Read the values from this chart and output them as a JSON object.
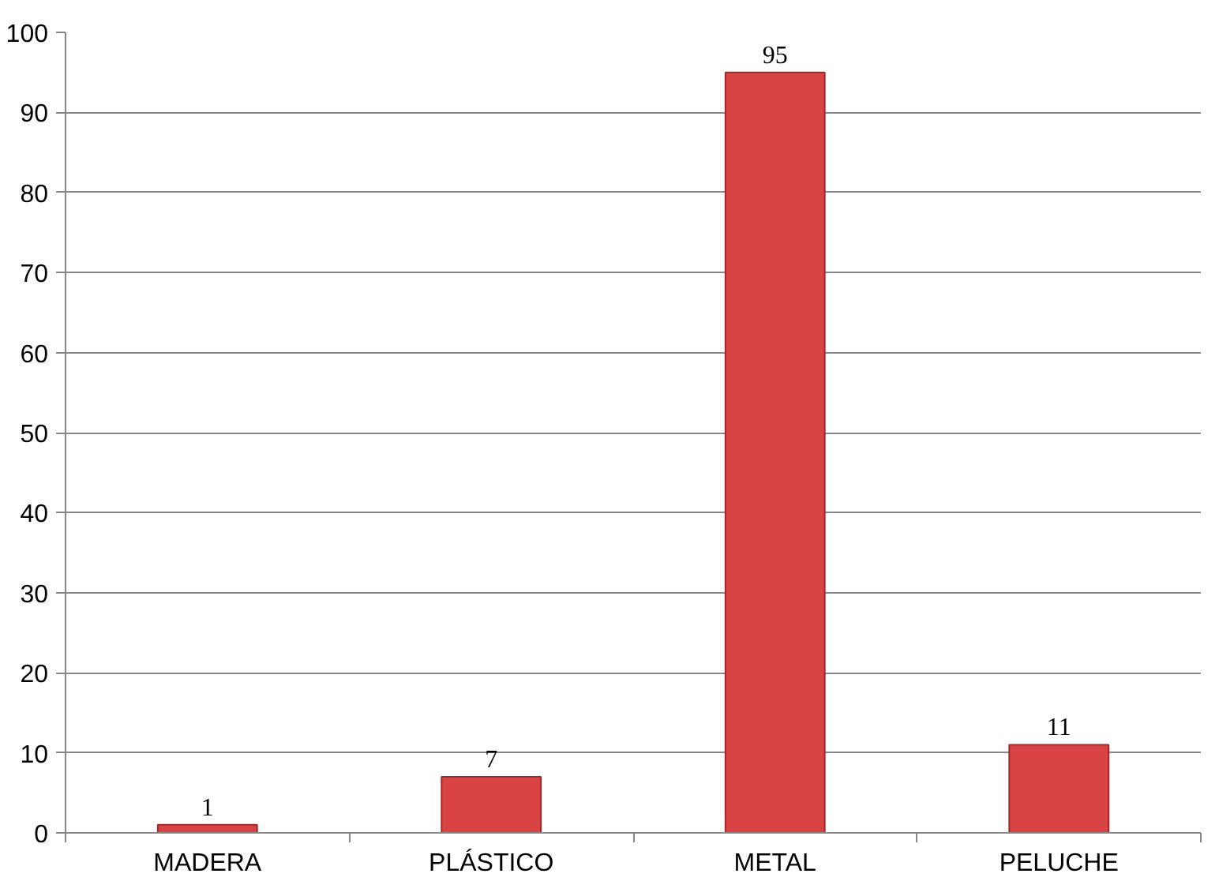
{
  "chart_data": {
    "type": "bar",
    "categories": [
      "MADERA",
      "PLÁSTICO",
      "METAL",
      "PELUCHE"
    ],
    "values": [
      1,
      7,
      95,
      11
    ],
    "color": "#d94343",
    "ylim": [
      0,
      100
    ],
    "yticks": [
      0,
      10,
      20,
      30,
      40,
      50,
      60,
      70,
      80,
      90,
      100
    ],
    "grid": "y",
    "data_labels": true
  }
}
